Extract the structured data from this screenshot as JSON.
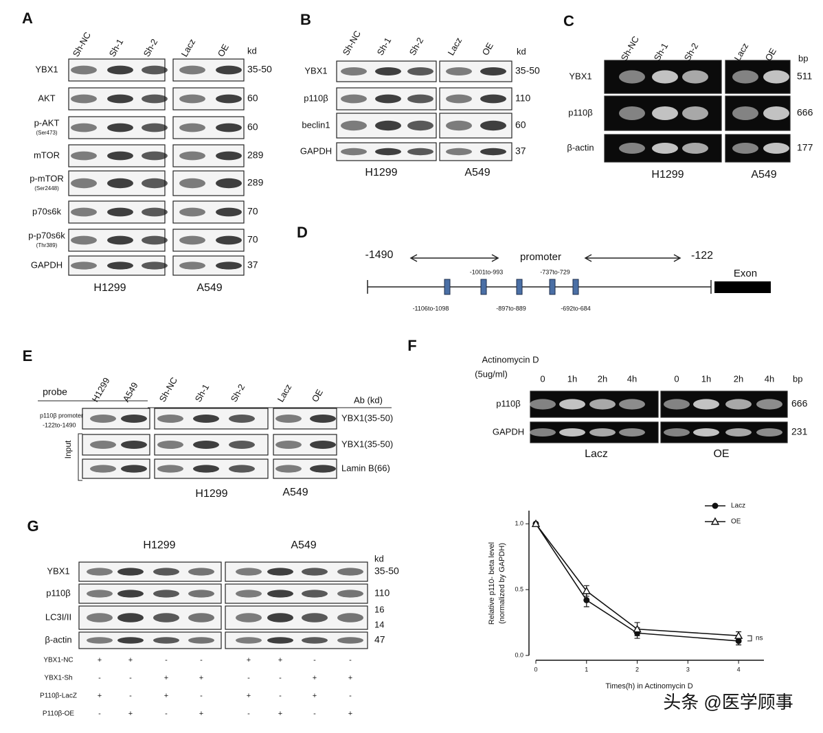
{
  "panels": {
    "A": {
      "label": "A",
      "lanes": [
        "Sh-NC",
        "Sh-1",
        "Sh-2",
        "Lacz",
        "OE"
      ],
      "unit": "kd",
      "rows": [
        {
          "name": "YBX1",
          "size": "35-50"
        },
        {
          "name": "AKT",
          "size": "60"
        },
        {
          "name": "p-AKT",
          "site": "(Ser473)",
          "size": "60"
        },
        {
          "name": "mTOR",
          "size": "289"
        },
        {
          "name": "p-mTOR",
          "site": "(Ser2448)",
          "size": "289"
        },
        {
          "name": "p70s6k",
          "size": "70"
        },
        {
          "name": "p-p70s6k",
          "site": "(Thr389)",
          "size": "70"
        },
        {
          "name": "GAPDH",
          "size": "37"
        }
      ],
      "cell_lines": [
        "H1299",
        "A549"
      ]
    },
    "B": {
      "label": "B",
      "lanes": [
        "Sh-NC",
        "Sh-1",
        "Sh-2",
        "Lacz",
        "OE"
      ],
      "unit": "kd",
      "rows": [
        {
          "name": "YBX1",
          "size": "35-50"
        },
        {
          "name": "p110β",
          "size": "110"
        },
        {
          "name": "beclin1",
          "size": "60"
        },
        {
          "name": "GAPDH",
          "size": "37"
        }
      ],
      "cell_lines": [
        "H1299",
        "A549"
      ]
    },
    "C": {
      "label": "C",
      "lanes": [
        "Sh-NC",
        "Sh-1",
        "Sh-2",
        "Lacz",
        "OE"
      ],
      "unit": "bp",
      "rows": [
        {
          "name": "YBX1",
          "size": "511"
        },
        {
          "name": "p110β",
          "size": "666"
        },
        {
          "name": "β-actin",
          "size": "177"
        }
      ],
      "cell_lines": [
        "H1299",
        "A549"
      ]
    },
    "D": {
      "label": "D",
      "start": "-1490",
      "end": "-122",
      "promoter": "promoter",
      "exon": "Exon",
      "sites": [
        "-1106to-1098",
        "-1001to-993",
        "-897to-889",
        "-737to-729",
        "-692to-684"
      ]
    },
    "E": {
      "label": "E",
      "probe": "probe",
      "lanes": [
        "H1299",
        "A549",
        "Sh-NC",
        "Sh-1",
        "Sh-2",
        "Lacz",
        "OE"
      ],
      "ab_header": "Ab (kd)",
      "probe_name": [
        "p110β promoter",
        "-122to-1490"
      ],
      "input": "Input",
      "antibodies": [
        "YBX1(35-50)",
        "YBX1(35-50)",
        "Lamin B(66)"
      ],
      "cell_lines": [
        "H1299",
        "A549"
      ]
    },
    "F": {
      "label": "F",
      "treatment": [
        "Actinomycin D",
        "(5ug/ml)"
      ],
      "lanes": [
        "0",
        "1h",
        "2h",
        "4h",
        "0",
        "1h",
        "2h",
        "4h"
      ],
      "unit": "bp",
      "rows": [
        {
          "name": "p110β",
          "size": "666"
        },
        {
          "name": "GAPDH",
          "size": "231"
        }
      ],
      "cell_lines": [
        "Lacz",
        "OE"
      ]
    },
    "G": {
      "label": "G",
      "groups": [
        "H1299",
        "A549"
      ],
      "unit": "kd",
      "rows": [
        {
          "name": "YBX1",
          "size": "35-50"
        },
        {
          "name": "p110β",
          "size": "110"
        },
        {
          "name": "LC3I/II",
          "size": [
            "16",
            "14"
          ]
        },
        {
          "name": "β-actin",
          "size": "47"
        }
      ],
      "conditions": [
        {
          "name": "YBX1-NC",
          "marks": [
            "+",
            "+",
            "-",
            "-",
            "+",
            "+",
            "-",
            "-"
          ]
        },
        {
          "name": "YBX1-Sh",
          "marks": [
            "-",
            "-",
            "+",
            "+",
            "-",
            "-",
            "+",
            "+"
          ]
        },
        {
          "name": "P110β-LacZ",
          "marks": [
            "+",
            "-",
            "+",
            "-",
            "+",
            "-",
            "+",
            "-"
          ]
        },
        {
          "name": "P110β-OE",
          "marks": [
            "-",
            "+",
            "-",
            "+",
            "-",
            "+",
            "-",
            "+"
          ]
        }
      ]
    }
  },
  "chart_data": {
    "type": "line",
    "xlabel": "Times(h) in Actinomycin D",
    "ylabel": [
      "Relative p110- beta level",
      "(normalized by GAPDH)"
    ],
    "x": [
      0,
      1,
      2,
      4
    ],
    "series": [
      {
        "name": "Lacz",
        "color": "#111111",
        "marker": "circle",
        "values": [
          1.0,
          0.42,
          0.17,
          0.11
        ],
        "errors": [
          0,
          0.05,
          0.04,
          0.03
        ]
      },
      {
        "name": "OE",
        "color": "#111111",
        "marker": "triangle",
        "values": [
          1.0,
          0.49,
          0.2,
          0.15
        ],
        "errors": [
          0,
          0.04,
          0.05,
          0.03
        ]
      }
    ],
    "xlim": [
      0,
      4.5
    ],
    "ylim": [
      0,
      1.1
    ],
    "xticks": [
      0,
      1,
      2,
      3,
      4
    ],
    "yticks": [
      {
        "value": 0,
        "label": "0.0"
      },
      {
        "value": 0.5,
        "label": "0.5"
      },
      {
        "value": 1,
        "label": "1.0"
      }
    ],
    "annotation": "ns",
    "legend": "upper right"
  },
  "watermark": "头条 @医学顾事"
}
